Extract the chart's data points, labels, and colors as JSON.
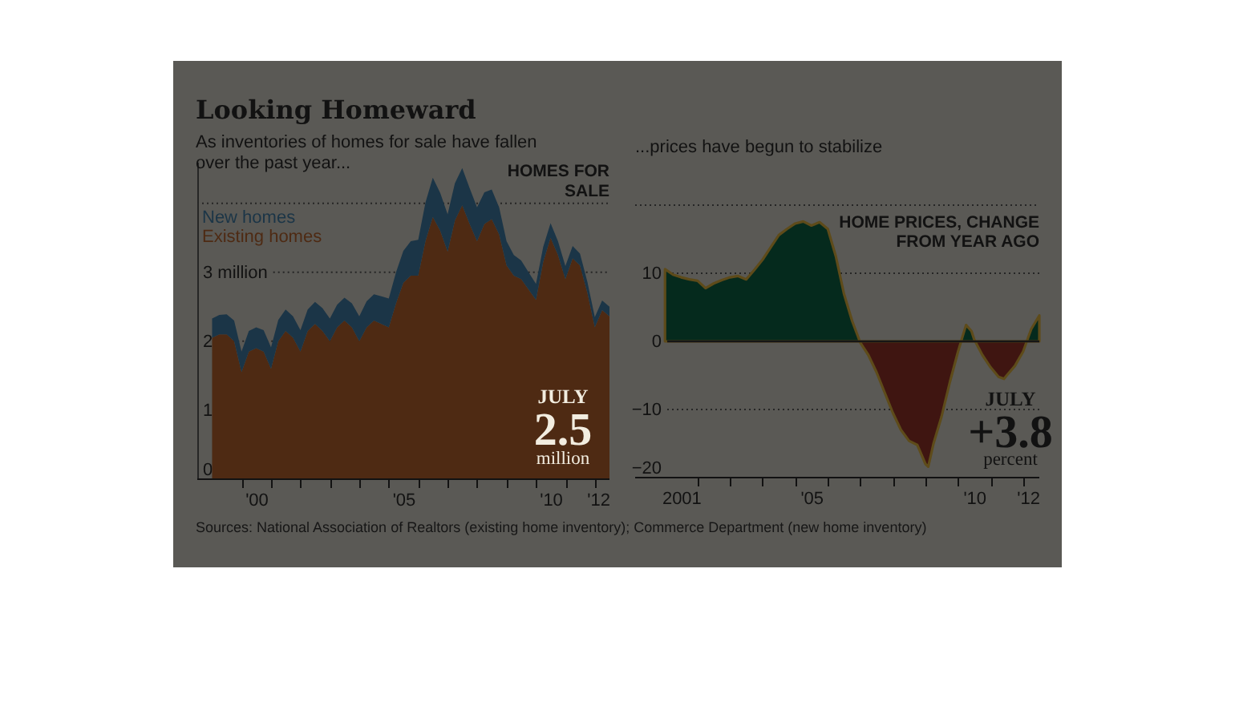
{
  "chart_data": [
    {
      "type": "area",
      "title": "Looking Homeward",
      "subtitle": "As inventories of homes for sale have fallen over the past year...",
      "ylabel": "HOMES FOR SALE",
      "stacked": true,
      "x": [
        "1999-01",
        "1999-04",
        "1999-07",
        "1999-10",
        "2000-01",
        "2000-04",
        "2000-07",
        "2000-10",
        "2001-01",
        "2001-04",
        "2001-07",
        "2001-10",
        "2002-01",
        "2002-04",
        "2002-07",
        "2002-10",
        "2003-01",
        "2003-04",
        "2003-07",
        "2003-10",
        "2004-01",
        "2004-04",
        "2004-07",
        "2004-10",
        "2005-01",
        "2005-04",
        "2005-07",
        "2005-10",
        "2006-01",
        "2006-04",
        "2006-07",
        "2006-10",
        "2007-01",
        "2007-04",
        "2007-07",
        "2007-10",
        "2008-01",
        "2008-04",
        "2008-07",
        "2008-10",
        "2009-01",
        "2009-04",
        "2009-07",
        "2009-10",
        "2010-01",
        "2010-04",
        "2010-07",
        "2010-10",
        "2011-01",
        "2011-04",
        "2011-07",
        "2011-10",
        "2012-01",
        "2012-04",
        "2012-07"
      ],
      "series": [
        {
          "name": "Existing homes",
          "color": "#4e2a13",
          "values": [
            2.05,
            2.1,
            2.1,
            2.0,
            1.55,
            1.85,
            1.9,
            1.85,
            1.6,
            2.0,
            2.15,
            2.05,
            1.85,
            2.15,
            2.25,
            2.15,
            2.0,
            2.2,
            2.3,
            2.2,
            2.0,
            2.2,
            2.3,
            2.25,
            2.2,
            2.55,
            2.85,
            2.95,
            2.95,
            3.45,
            3.8,
            3.6,
            3.3,
            3.75,
            3.97,
            3.7,
            3.45,
            3.7,
            3.77,
            3.55,
            3.1,
            2.95,
            2.9,
            2.75,
            2.6,
            3.15,
            3.5,
            3.25,
            2.9,
            3.2,
            3.1,
            2.7,
            2.2,
            2.45,
            2.36
          ]
        },
        {
          "name": "New homes",
          "color": "#1b3547",
          "values": [
            0.28,
            0.28,
            0.29,
            0.3,
            0.3,
            0.3,
            0.3,
            0.31,
            0.31,
            0.31,
            0.31,
            0.31,
            0.31,
            0.31,
            0.32,
            0.33,
            0.33,
            0.33,
            0.33,
            0.35,
            0.36,
            0.38,
            0.38,
            0.4,
            0.42,
            0.45,
            0.46,
            0.5,
            0.52,
            0.56,
            0.57,
            0.55,
            0.54,
            0.54,
            0.54,
            0.52,
            0.49,
            0.46,
            0.43,
            0.39,
            0.35,
            0.3,
            0.27,
            0.25,
            0.23,
            0.22,
            0.21,
            0.2,
            0.19,
            0.18,
            0.17,
            0.16,
            0.15,
            0.14,
            0.14
          ]
        }
      ],
      "xlim": [
        "1998-07",
        "2012-07"
      ],
      "xticks": [
        {
          "value": "2000-01",
          "label": null
        },
        {
          "value": "2000-07",
          "label": "'00"
        },
        {
          "value": "2001-01",
          "label": null
        },
        {
          "value": "2002-01",
          "label": null
        },
        {
          "value": "2003-01",
          "label": null
        },
        {
          "value": "2004-01",
          "label": null
        },
        {
          "value": "2005-01",
          "label": null
        },
        {
          "value": "2005-07",
          "label": "'05"
        },
        {
          "value": "2006-01",
          "label": null
        },
        {
          "value": "2007-01",
          "label": null
        },
        {
          "value": "2008-01",
          "label": null
        },
        {
          "value": "2009-01",
          "label": null
        },
        {
          "value": "2010-01",
          "label": null
        },
        {
          "value": "2010-07",
          "label": "'10"
        },
        {
          "value": "2011-01",
          "label": null
        },
        {
          "value": "2012-01",
          "label": null
        },
        {
          "value": "2012-07",
          "label": "'12"
        }
      ],
      "ylim": [
        0,
        4.6
      ],
      "yticks": [
        0,
        1,
        2,
        {
          "value": 3,
          "label": "3 million"
        },
        {
          "value": 4,
          "label": null
        }
      ],
      "grid": "y",
      "legend": "top left",
      "annotations": [
        {
          "text": "JULY\n2.5\nmillion",
          "x": "2012-07",
          "y": 2.5
        },
        "Sources: National Association of Realtors (existing home inventory); Commerce Department (new home inventory)"
      ]
    },
    {
      "type": "area",
      "subtitle": "...prices have begun to stabilize",
      "ylabel": "HOME PRICES, CHANGE FROM YEAR AGO",
      "x": [
        "2001-01",
        "2001-04",
        "2001-07",
        "2001-10",
        "2002-01",
        "2002-04",
        "2002-07",
        "2002-10",
        "2003-01",
        "2003-04",
        "2003-07",
        "2003-10",
        "2004-01",
        "2004-04",
        "2004-07",
        "2004-10",
        "2005-01",
        "2005-04",
        "2005-07",
        "2005-10",
        "2006-01",
        "2006-04",
        "2006-07",
        "2006-10",
        "2007-01",
        "2007-04",
        "2007-07",
        "2007-10",
        "2008-01",
        "2008-04",
        "2008-07",
        "2008-10",
        "2009-01",
        "2009-02",
        "2009-04",
        "2009-07",
        "2009-10",
        "2010-01",
        "2010-04",
        "2010-06",
        "2010-07",
        "2010-10",
        "2011-01",
        "2011-04",
        "2011-06",
        "2011-07",
        "2011-10",
        "2012-01",
        "2012-04",
        "2012-07"
      ],
      "series": [
        {
          "values": [
            10.6,
            9.8,
            9.4,
            9.1,
            8.9,
            7.8,
            8.5,
            9.0,
            9.4,
            9.6,
            9.1,
            10.5,
            12.0,
            13.8,
            15.6,
            16.5,
            17.3,
            17.6,
            17.0,
            17.5,
            16.5,
            12.5,
            7.0,
            3.0,
            -0.2,
            -2.0,
            -4.5,
            -7.5,
            -10.5,
            -13.0,
            -14.6,
            -15.2,
            -18.0,
            -18.4,
            -15.0,
            -11.0,
            -6.0,
            -1.5,
            2.4,
            1.5,
            0.3,
            -2.0,
            -3.8,
            -5.2,
            -5.5,
            -5.0,
            -3.6,
            -1.5,
            1.8,
            3.8
          ],
          "colors": [
            "#052a1d",
            "#052a1d",
            "#052a1d",
            "#052a1d",
            "#052a1d",
            "#052a1d",
            "#052a1d",
            "#052a1d",
            "#052a1d",
            "#052a1d",
            "#052a1d",
            "#052a1d",
            "#052a1d",
            "#052a1d",
            "#052a1d",
            "#052a1d",
            "#052a1d",
            "#052a1d",
            "#052a1d",
            "#052a1d",
            "#052a1d",
            "#052a1d",
            "#052a1d",
            "#052a1d",
            "#3f1511",
            "#3f1511",
            "#3f1511",
            "#3f1511",
            "#3f1511",
            "#3f1511",
            "#3f1511",
            "#3f1511",
            "#3f1511",
            "#3f1511",
            "#3f1511",
            "#3f1511",
            "#3f1511",
            "#3f1511",
            "#052a1d",
            "#052a1d",
            "#052a1d",
            "#3f1511",
            "#3f1511",
            "#3f1511",
            "#3f1511",
            "#3f1511",
            "#3f1511",
            "#3f1511",
            "#052a1d",
            "#052a1d"
          ]
        }
      ],
      "xlim": [
        "2000-02",
        "2012-07"
      ],
      "xticks": [
        {
          "value": "2001-07",
          "label": "2001"
        },
        {
          "value": "2002-01",
          "label": null
        },
        {
          "value": "2003-01",
          "label": null
        },
        {
          "value": "2004-01",
          "label": null
        },
        {
          "value": "2005-01",
          "label": null
        },
        {
          "value": "2005-07",
          "label": "'05"
        },
        {
          "value": "2006-01",
          "label": null
        },
        {
          "value": "2007-01",
          "label": null
        },
        {
          "value": "2008-01",
          "label": null
        },
        {
          "value": "2009-01",
          "label": null
        },
        {
          "value": "2010-01",
          "label": null
        },
        {
          "value": "2010-07",
          "label": "'10"
        },
        {
          "value": "2011-01",
          "label": null
        },
        {
          "value": "2012-01",
          "label": null
        },
        {
          "value": "2012-07",
          "label": "'12"
        }
      ],
      "ylim": [
        -20,
        20
      ],
      "yticks": [
        -20,
        -10,
        0,
        10,
        {
          "value": 20,
          "label": null
        }
      ],
      "grid": "y",
      "ref_lines": [
        {
          "axis": "y",
          "value": 0,
          "color": "#161616"
        }
      ],
      "annotations": [
        {
          "text": "JULY\n+3.8\npercent",
          "x": "2012-07",
          "y": 3.8
        }
      ]
    }
  ]
}
